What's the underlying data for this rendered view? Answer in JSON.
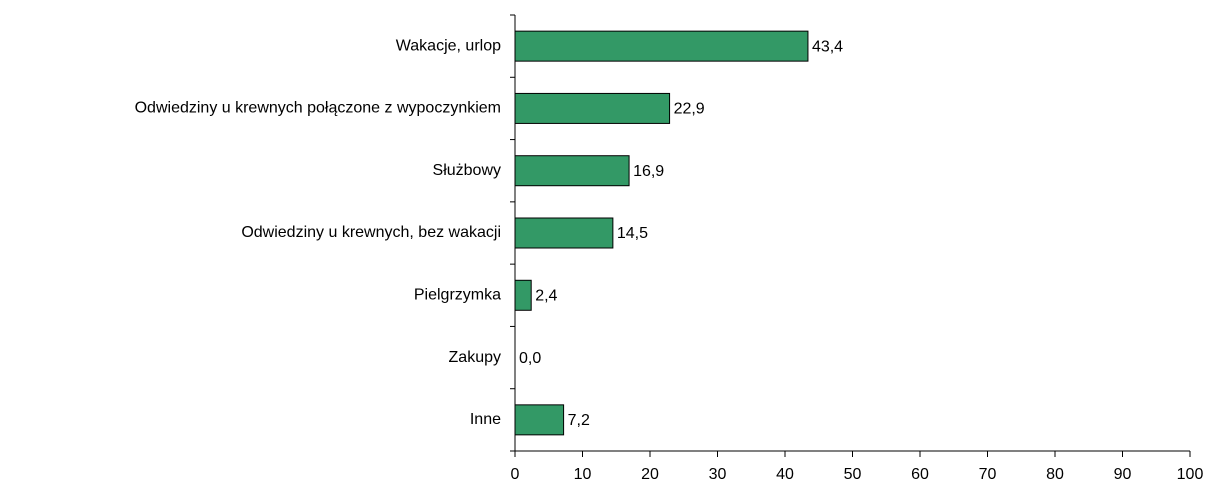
{
  "chart_data": {
    "type": "bar",
    "orientation": "horizontal",
    "categories": [
      "Wakacje, urlop",
      "Odwiedziny u krewnych połączone z wypoczynkiem",
      "Służbowy",
      "Odwiedziny u krewnych, bez wakacji",
      "Pielgrzymka",
      "Zakupy",
      "Inne"
    ],
    "values": [
      43.4,
      22.9,
      16.9,
      14.5,
      2.4,
      0,
      7.2
    ],
    "value_labels": [
      "43,4",
      "22,9",
      "16,9",
      "14,5",
      "2,4",
      "0,0",
      "7,2"
    ],
    "color": "#339966",
    "xlim": [
      0,
      100
    ],
    "xticks": [
      0,
      10,
      20,
      30,
      40,
      50,
      60,
      70,
      80,
      90,
      100
    ]
  }
}
